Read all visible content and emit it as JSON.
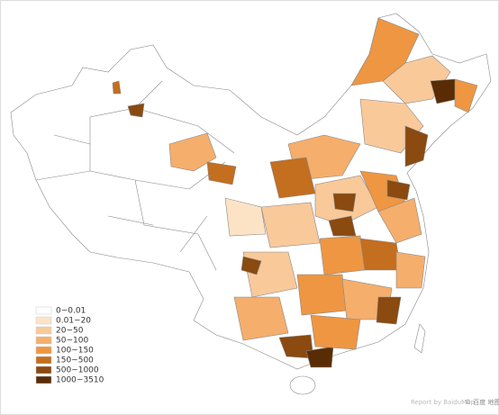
{
  "legend": {
    "items": [
      {
        "label": "0~0.01",
        "color": "#ffffff"
      },
      {
        "label": "0.01~20",
        "color": "#fde3c6"
      },
      {
        "label": "20~50",
        "color": "#f9c99a"
      },
      {
        "label": "50~100",
        "color": "#f5ae6c"
      },
      {
        "label": "100~150",
        "color": "#ee9642"
      },
      {
        "label": "150~500",
        "color": "#c46e1f"
      },
      {
        "label": "500~1000",
        "color": "#8a4a10"
      },
      {
        "label": "1000~3510",
        "color": "#5a2c06"
      }
    ]
  },
  "watermark": {
    "text": "Report by BaiduMap",
    "brand": "© 百度 地图"
  }
}
